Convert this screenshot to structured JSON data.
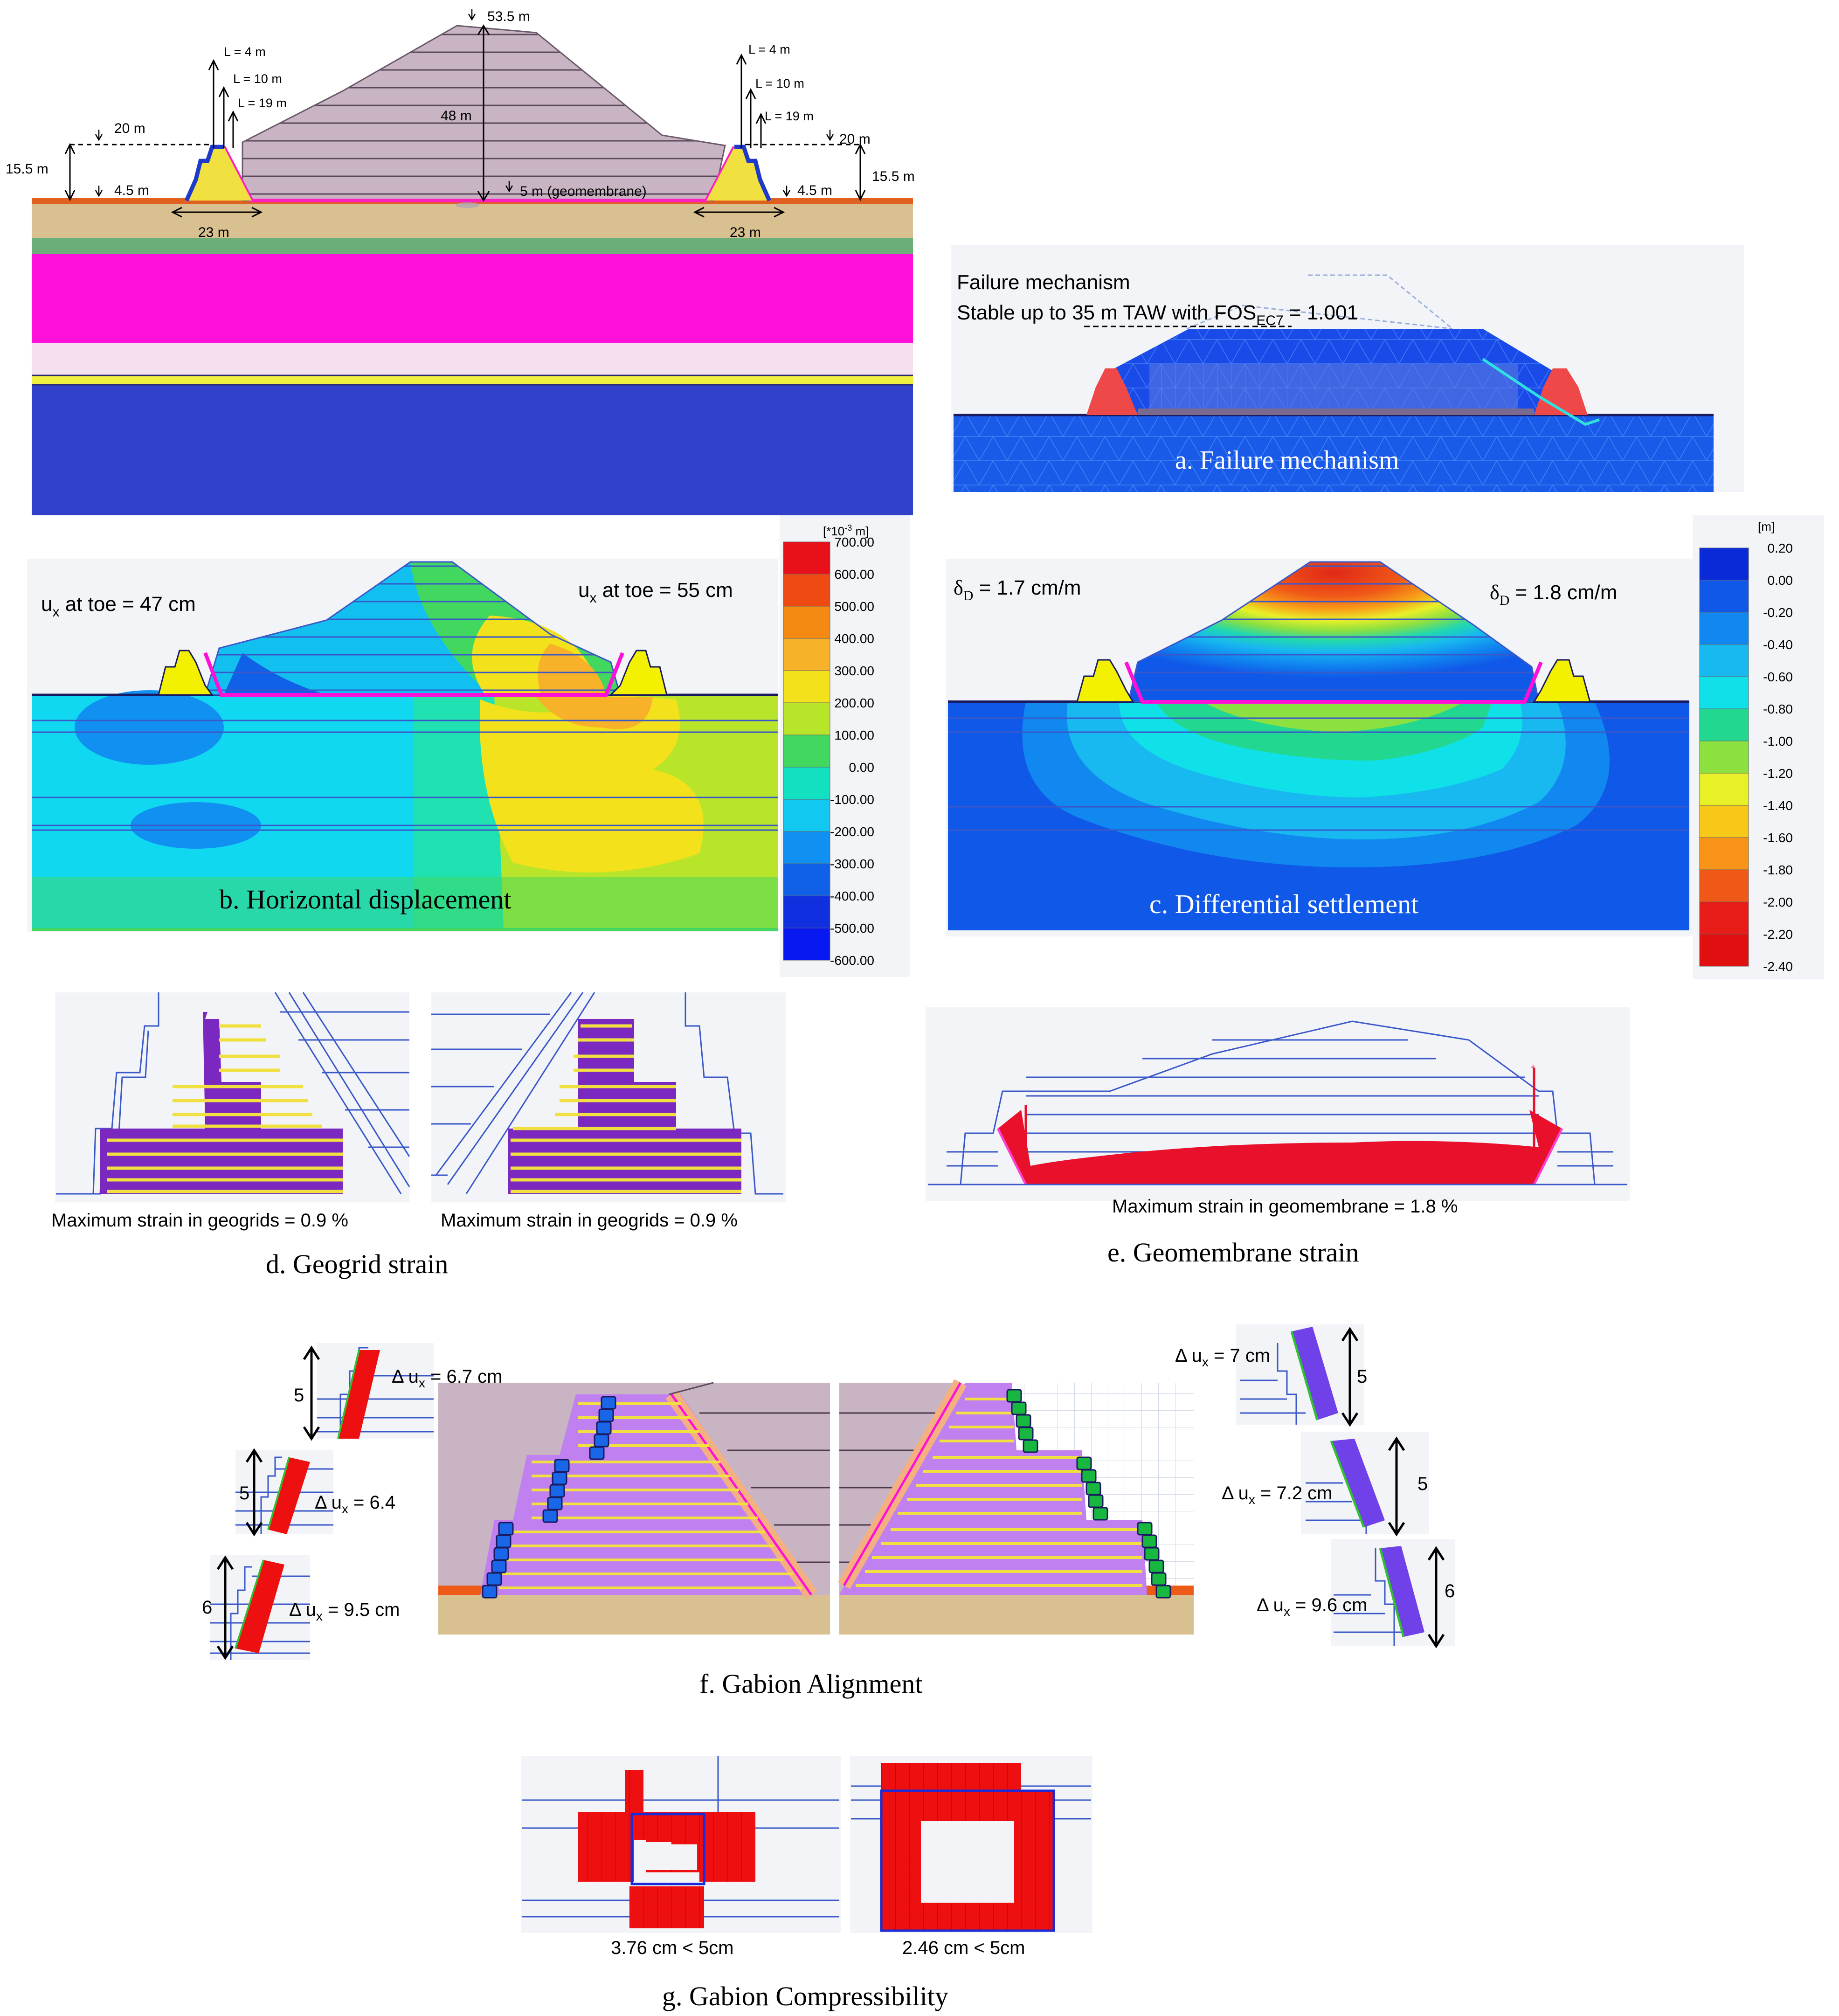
{
  "top_section": {
    "dims": {
      "top_elev": "53.5 m",
      "height": "48 m",
      "base": "5 m (geomembrane)",
      "left": {
        "l4": "L = 4 m",
        "l10": "L = 10 m",
        "l19": "L = 19 m",
        "el20": "20 m",
        "h155": "15.5 m",
        "el45": "4.5 m",
        "w23": "23 m"
      },
      "right": {
        "l4": "L = 4 m",
        "l10": "L = 10 m",
        "l19": "L = 19 m",
        "el20": "20 m",
        "h155": "15.5 m",
        "el45": "4.5 m",
        "w23": "23 m"
      }
    }
  },
  "panel_a": {
    "line1": "Failure mechanism",
    "line2": "Stable up to 35 m TAW with FOS",
    "sub": "EC7",
    "value": " = 1.001",
    "caption": "a.   Failure mechanism"
  },
  "panel_b": {
    "left_label": "u",
    "left_sub": "x",
    "left_value": " at toe = 47 cm",
    "right_label": "u",
    "right_sub": "x",
    "right_value": " at toe = 55 cm",
    "caption": "b.   Horizontal displacement"
  },
  "legend_b": {
    "unit": "[*10",
    "unit_exp": "-3",
    "unit_tail": " m]",
    "ticks": [
      "700.00",
      "600.00",
      "500.00",
      "400.00",
      "300.00",
      "200.00",
      "100.00",
      "0.00",
      "-100.00",
      "-200.00",
      "-300.00",
      "-400.00",
      "-500.00",
      "-600.00"
    ],
    "colors": [
      "#e8101a",
      "#ef4a14",
      "#f58a12",
      "#f7b22a",
      "#f3e11c",
      "#b8e52a",
      "#42d860",
      "#12e0c0",
      "#10c8f0",
      "#1090f0",
      "#1060e8",
      "#1030e0",
      "#0818f0"
    ]
  },
  "panel_c": {
    "left_label": "δ",
    "left_sub": "D",
    "left_value": " = 1.7 cm/m",
    "right_label": "δ",
    "right_sub": "D",
    "right_value": " = 1.8 cm/m",
    "caption": "c.   Differential settlement"
  },
  "legend_c": {
    "unit": "[m]",
    "ticks": [
      "0.20",
      "0.00",
      "-0.20",
      "-0.40",
      "-0.60",
      "-0.80",
      "-1.00",
      "-1.20",
      "-1.40",
      "-1.60",
      "-1.80",
      "-2.00",
      "-2.20",
      "-2.40"
    ],
    "colors": [
      "#0a2ad8",
      "#1058e8",
      "#1088f0",
      "#18b8f0",
      "#10e0e8",
      "#22d890",
      "#8ce040",
      "#e8f028",
      "#f8c818",
      "#f89418",
      "#f05818",
      "#e81c18",
      "#e01010"
    ]
  },
  "panel_d": {
    "left_note": "Maximum strain in geogrids = 0.9 %",
    "right_note": "Maximum strain in geogrids = 0.9 %",
    "caption": "d.   Geogrid strain"
  },
  "panel_e": {
    "note": "Maximum strain in geomembrane = 1.8 %",
    "caption": "e.   Geomembrane strain"
  },
  "panel_f": {
    "left_insets": [
      {
        "dim": "5",
        "label": "Δ u",
        "sub": "x",
        "value": " = 6.7 cm"
      },
      {
        "dim": "5",
        "label": "Δ u",
        "sub": "x",
        "value": " = 6.4"
      },
      {
        "dim": "6",
        "label": "Δ u",
        "sub": "x",
        "value": " = 9.5 cm"
      }
    ],
    "right_insets": [
      {
        "dim": "5",
        "label": "Δ u",
        "sub": "x",
        "value": " = 7 cm"
      },
      {
        "dim": "5",
        "label": "Δ u",
        "sub": "x",
        "value": " = 7.2 cm"
      },
      {
        "dim": "6",
        "label": "Δ u",
        "sub": "x",
        "value": " = 9.6 cm"
      }
    ],
    "caption": "f.   Gabion Alignment"
  },
  "panel_g": {
    "left_note": "3.76 cm < 5cm",
    "right_note": "2.46 cm < 5cm",
    "caption": "g.   Gabion Compressibility"
  },
  "colors": {
    "embankment": "#c9b4c4",
    "soil_tan": "#d8c090",
    "magenta": "#ff10d8",
    "deep_blue": "#3040c8",
    "gabion_yellow": "#f0e040",
    "mesh_blue": "#1060f0"
  }
}
